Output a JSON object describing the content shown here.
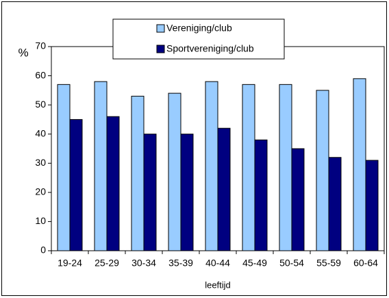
{
  "chart_data": {
    "type": "bar",
    "categories": [
      "19-24",
      "25-29",
      "30-34",
      "35-39",
      "40-44",
      "45-49",
      "50-54",
      "55-59",
      "60-64"
    ],
    "series": [
      {
        "name": "Vereniging/club",
        "color": "#99ccff",
        "values": [
          57,
          58,
          53,
          54,
          58,
          57,
          57,
          55,
          59
        ]
      },
      {
        "name": "Sportvereniging/club",
        "color": "#000080",
        "values": [
          45,
          46,
          40,
          40,
          42,
          38,
          35,
          32,
          31
        ]
      }
    ],
    "ylabel": "%",
    "xlabel": "leeftijd",
    "ylim": [
      0,
      70
    ],
    "yticks": [
      0,
      10,
      20,
      30,
      40,
      50,
      60,
      70
    ],
    "grid": false,
    "legend": "top"
  }
}
